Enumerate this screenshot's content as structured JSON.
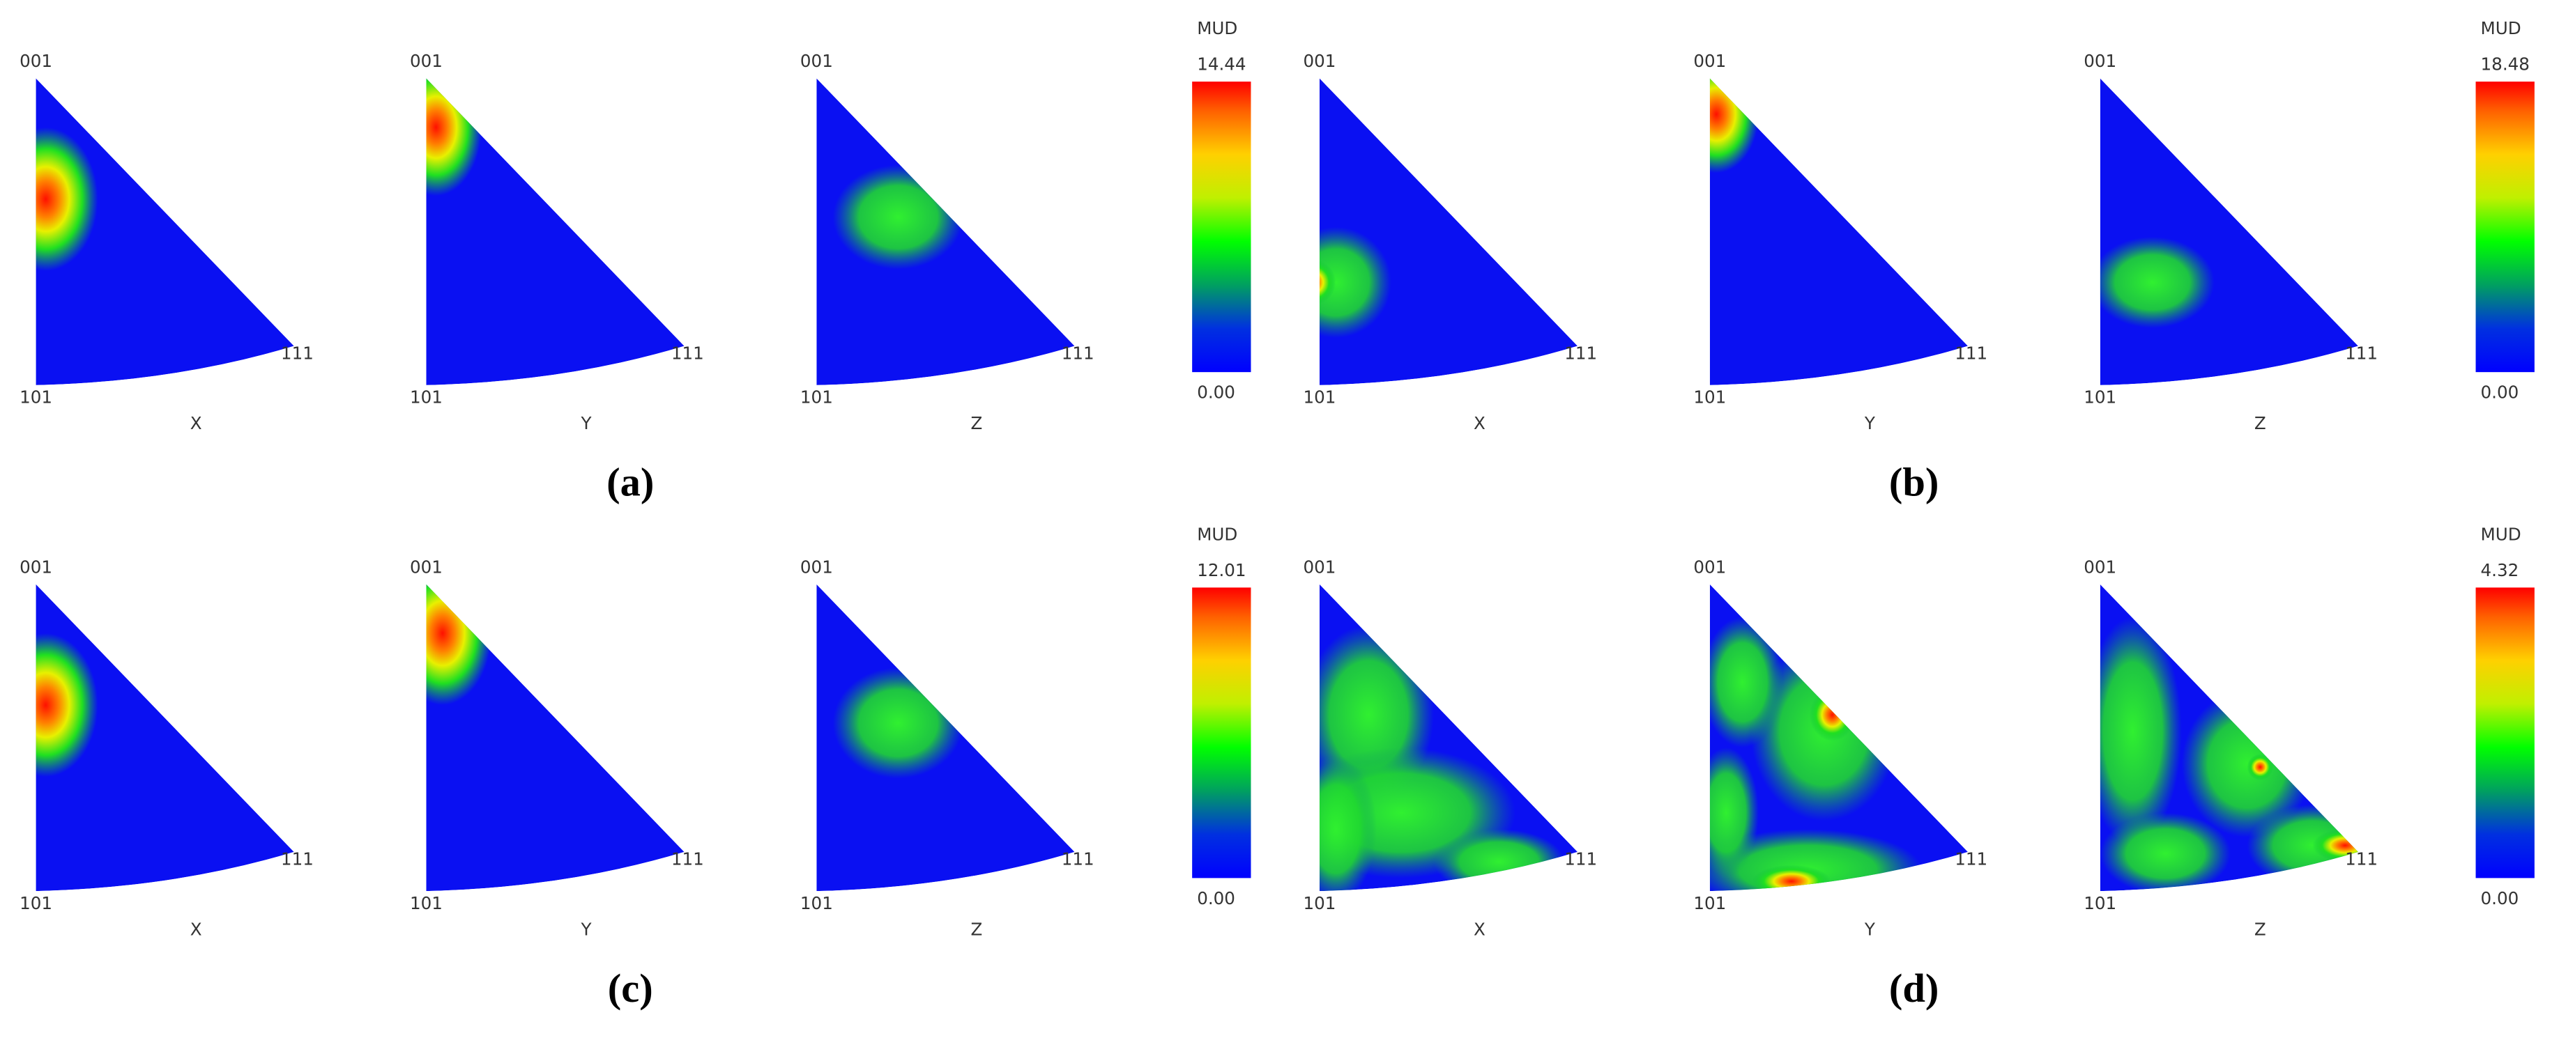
{
  "panels": [
    {
      "label": "(a)",
      "colorbar": {
        "title": "MUD",
        "max": "14.44",
        "min": "0.00"
      },
      "pole_figures": [
        {
          "axis": "X",
          "corners": [
            "001",
            "101",
            "111"
          ]
        },
        {
          "axis": "Y",
          "corners": [
            "001",
            "101",
            "111"
          ]
        },
        {
          "axis": "Z",
          "corners": [
            "001",
            "101",
            "111"
          ]
        }
      ]
    },
    {
      "label": "(b)",
      "colorbar": {
        "title": "MUD",
        "max": "18.48",
        "min": "0.00"
      },
      "pole_figures": [
        {
          "axis": "X",
          "corners": [
            "001",
            "101",
            "111"
          ]
        },
        {
          "axis": "Y",
          "corners": [
            "001",
            "101",
            "111"
          ]
        },
        {
          "axis": "Z",
          "corners": [
            "001",
            "101",
            "111"
          ]
        }
      ]
    },
    {
      "label": "(c)",
      "colorbar": {
        "title": "MUD",
        "max": "12.01",
        "min": "0.00"
      },
      "pole_figures": [
        {
          "axis": "X",
          "corners": [
            "001",
            "101",
            "111"
          ]
        },
        {
          "axis": "Y",
          "corners": [
            "001",
            "101",
            "111"
          ]
        },
        {
          "axis": "Z",
          "corners": [
            "001",
            "101",
            "111"
          ]
        }
      ]
    },
    {
      "label": "(d)",
      "colorbar": {
        "title": "MUD",
        "max": "4.32",
        "min": "0.00"
      },
      "pole_figures": [
        {
          "axis": "X",
          "corners": [
            "001",
            "101",
            "111"
          ]
        },
        {
          "axis": "Y",
          "corners": [
            "001",
            "101",
            "111"
          ]
        },
        {
          "axis": "Z",
          "corners": [
            "001",
            "101",
            "111"
          ]
        }
      ]
    }
  ]
}
